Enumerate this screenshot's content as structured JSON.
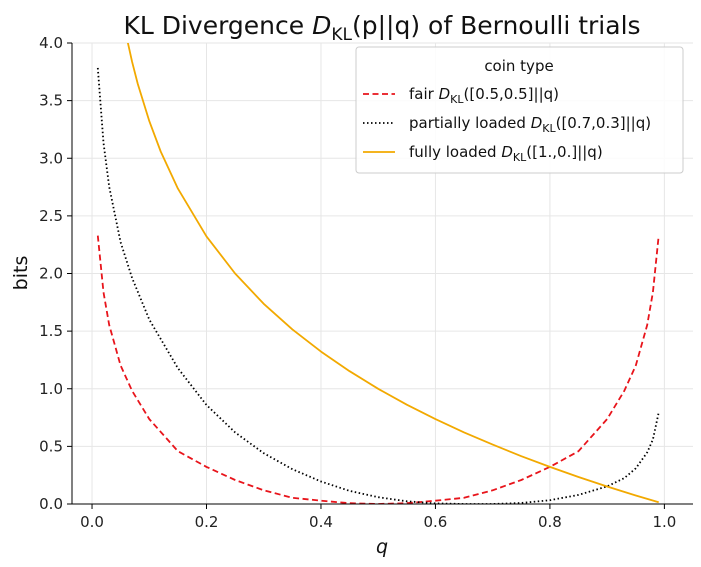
{
  "chart_data": {
    "type": "line",
    "title": {
      "prefix": "KL Divergence ",
      "D": "D",
      "sub": "KL",
      "args": "(p||q)",
      "suffix": " of Bernoulli trials"
    },
    "xlabel": "q",
    "ylabel": "bits",
    "xlim": [
      -0.035,
      1.05
    ],
    "ylim": [
      0,
      4
    ],
    "x_ticks": [
      {
        "value": 0.0,
        "label": "0.0"
      },
      {
        "value": 0.2,
        "label": "0.2"
      },
      {
        "value": 0.4,
        "label": "0.4"
      },
      {
        "value": 0.6,
        "label": "0.6"
      },
      {
        "value": 0.8,
        "label": "0.8"
      },
      {
        "value": 1.0,
        "label": "1.0"
      }
    ],
    "y_ticks": [
      {
        "value": 0.0,
        "label": "0.0"
      },
      {
        "value": 0.5,
        "label": "0.5"
      },
      {
        "value": 1.0,
        "label": "1.0"
      },
      {
        "value": 1.5,
        "label": "1.5"
      },
      {
        "value": 2.0,
        "label": "2.0"
      },
      {
        "value": 2.5,
        "label": "2.5"
      },
      {
        "value": 3.0,
        "label": "3.0"
      },
      {
        "value": 3.5,
        "label": "3.5"
      },
      {
        "value": 4.0,
        "label": "4.0"
      }
    ],
    "grid": true,
    "legend": {
      "title": "coin type",
      "placement": "top-right",
      "entries": [
        {
          "prefix": "fair ",
          "D": "D",
          "sub": "KL",
          "args": "([0.5,0.5]||q)",
          "series": 0
        },
        {
          "prefix": "partially loaded ",
          "D": "D",
          "sub": "KL",
          "args": "([0.7,0.3]||q)",
          "series": 1
        },
        {
          "prefix": "fully loaded ",
          "D": "D",
          "sub": "KL",
          "args": "([1.,0.]||q)",
          "series": 2
        }
      ]
    },
    "series": [
      {
        "color": "#e8141b",
        "dash": "dashed",
        "x": [
          0.01,
          0.02,
          0.03,
          0.05,
          0.07,
          0.1,
          0.15,
          0.2,
          0.25,
          0.3,
          0.35,
          0.4,
          0.45,
          0.5,
          0.55,
          0.6,
          0.65,
          0.7,
          0.75,
          0.8,
          0.85,
          0.9,
          0.93,
          0.95,
          0.97,
          0.98,
          0.99
        ],
        "y": [
          2.329,
          1.837,
          1.553,
          1.202,
          0.982,
          0.737,
          0.458,
          0.322,
          0.208,
          0.119,
          0.054,
          0.029,
          0.007,
          0.0,
          0.007,
          0.029,
          0.054,
          0.119,
          0.208,
          0.322,
          0.458,
          0.737,
          0.982,
          1.202,
          1.553,
          1.837,
          2.329
        ]
      },
      {
        "color": "#000000",
        "dash": "dotted",
        "x": [
          0.01,
          0.02,
          0.03,
          0.05,
          0.07,
          0.1,
          0.15,
          0.2,
          0.25,
          0.3,
          0.35,
          0.4,
          0.45,
          0.5,
          0.55,
          0.6,
          0.65,
          0.7,
          0.75,
          0.8,
          0.85,
          0.9,
          0.93,
          0.95,
          0.97,
          0.98,
          0.99
        ],
        "y": [
          3.784,
          3.133,
          2.752,
          2.272,
          1.961,
          1.6,
          1.178,
          0.859,
          0.621,
          0.441,
          0.302,
          0.195,
          0.114,
          0.059,
          0.023,
          0.005,
          0.0,
          0.0,
          0.009,
          0.033,
          0.079,
          0.153,
          0.225,
          0.31,
          0.448,
          0.56,
          0.794
        ]
      },
      {
        "color": "#f2a900",
        "dash": "solid",
        "x": [
          0.055,
          0.06,
          0.07,
          0.08,
          0.1,
          0.12,
          0.15,
          0.2,
          0.25,
          0.3,
          0.35,
          0.4,
          0.45,
          0.5,
          0.55,
          0.6,
          0.65,
          0.7,
          0.75,
          0.8,
          0.85,
          0.9,
          0.95,
          0.99
        ],
        "y": [
          4.185,
          4.059,
          3.837,
          3.644,
          3.322,
          3.059,
          2.737,
          2.322,
          2.0,
          1.737,
          1.515,
          1.322,
          1.152,
          1.0,
          0.862,
          0.737,
          0.621,
          0.515,
          0.415,
          0.322,
          0.234,
          0.152,
          0.074,
          0.0145
        ]
      }
    ]
  }
}
